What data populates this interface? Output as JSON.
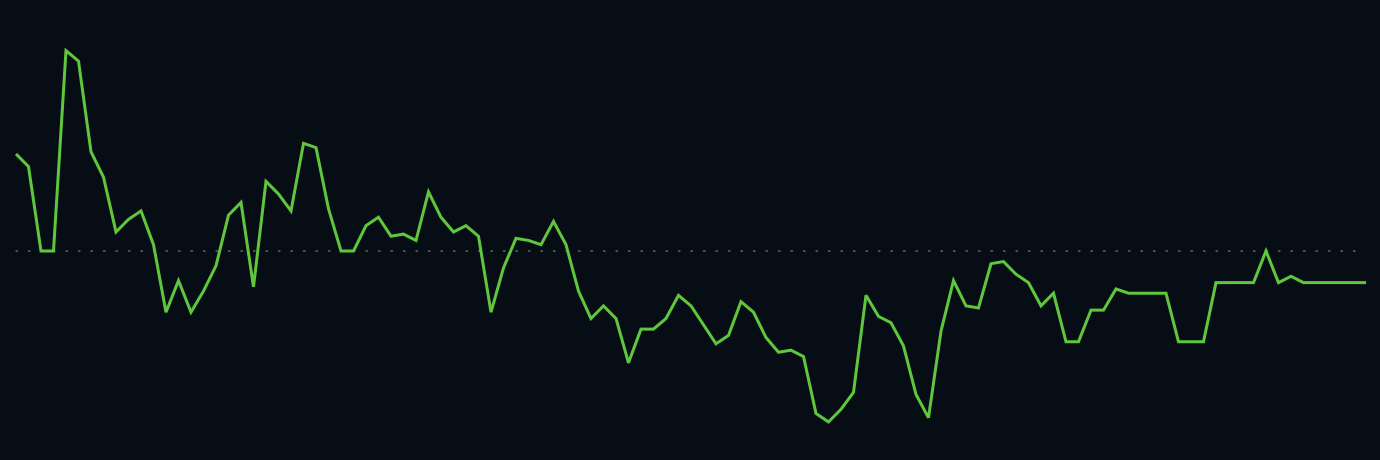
{
  "chart_data": {
    "type": "line",
    "title": "",
    "xlabel": "",
    "ylabel": "",
    "ylim": [
      -1,
      1
    ],
    "grid": false,
    "legend": "none",
    "baseline": 0,
    "colors": {
      "background": "#070d14",
      "line": "#5fc73d",
      "baseline": "#5f6670"
    },
    "series": [
      {
        "values": [
          0.46,
          0.4,
          0.0,
          0.0,
          0.95,
          0.9,
          0.47,
          0.35,
          0.09,
          0.15,
          0.19,
          0.03,
          -0.29,
          -0.14,
          -0.29,
          -0.19,
          -0.07,
          0.17,
          0.23,
          -0.17,
          0.33,
          0.27,
          0.19,
          0.51,
          0.49,
          0.2,
          0.0,
          0.0,
          0.12,
          0.16,
          0.07,
          0.08,
          0.05,
          0.28,
          0.16,
          0.09,
          0.12,
          0.07,
          -0.29,
          -0.08,
          0.06,
          0.05,
          0.03,
          0.14,
          0.03,
          -0.19,
          -0.32,
          -0.26,
          -0.32,
          -0.53,
          -0.37,
          -0.37,
          -0.32,
          -0.21,
          -0.26,
          -0.35,
          -0.44,
          -0.4,
          -0.24,
          -0.29,
          -0.41,
          -0.48,
          -0.47,
          -0.5,
          -0.77,
          -0.81,
          -0.75,
          -0.67,
          -0.21,
          -0.31,
          -0.34,
          -0.45,
          -0.68,
          -0.79,
          -0.38,
          -0.14,
          -0.26,
          -0.27,
          -0.06,
          -0.05,
          -0.11,
          -0.15,
          -0.26,
          -0.2,
          -0.43,
          -0.43,
          -0.28,
          -0.28,
          -0.18,
          -0.2,
          -0.2,
          -0.2,
          -0.2,
          -0.43,
          -0.43,
          -0.43,
          -0.15,
          -0.15,
          -0.15,
          -0.15,
          0.0,
          -0.15,
          -0.12,
          -0.15,
          -0.15,
          -0.15,
          -0.15,
          -0.15,
          -0.15
        ]
      }
    ]
  }
}
